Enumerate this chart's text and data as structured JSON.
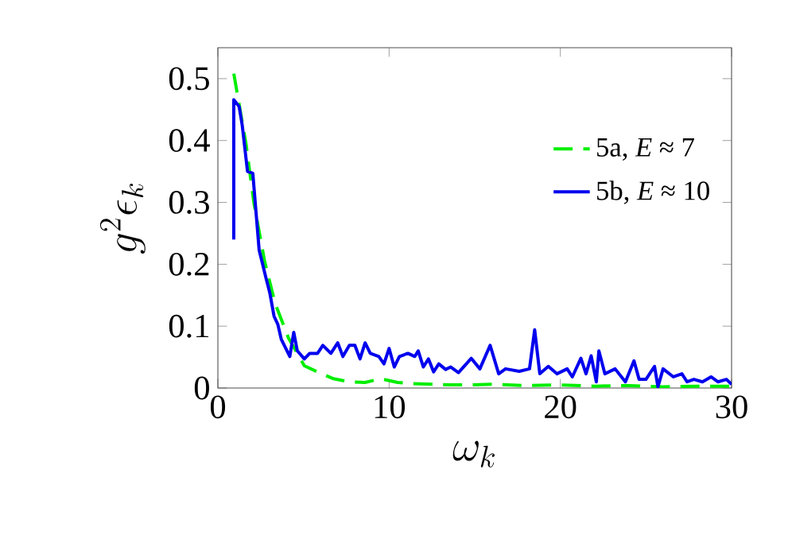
{
  "chart_data": {
    "type": "line",
    "xlabel": "\\omega_k",
    "ylabel": "g^2\\epsilon_k",
    "xlim": [
      0,
      30
    ],
    "ylim": [
      0,
      0.55
    ],
    "xticks": [
      0,
      10,
      20,
      30
    ],
    "yticks": [
      0,
      0.1,
      0.2,
      0.3,
      0.4,
      0.5
    ],
    "legend": "top right",
    "grid": false,
    "marker": "none",
    "series": [
      {
        "name": "5a, *E* ≈ 7",
        "color": "#00ee00",
        "line_style": "dashed",
        "x": [
          0.93,
          1.64,
          2.1,
          2.72,
          3.34,
          4.12,
          5.05,
          5.98,
          6.75,
          7.68,
          8.6,
          9.5,
          10.5,
          11.4,
          12.6,
          13.6,
          14.5,
          16,
          18,
          20,
          22,
          24,
          26,
          28,
          30
        ],
        "values": [
          0.508,
          0.395,
          0.3,
          0.206,
          0.137,
          0.081,
          0.036,
          0.024,
          0.015,
          0.01,
          0.009,
          0.015,
          0.009,
          0.007,
          0.006,
          0.005,
          0.005,
          0.006,
          0.004,
          0.005,
          0.003,
          0.004,
          0.002,
          0.003,
          0.003
        ]
      },
      {
        "name": "5b, *E* ≈ 10",
        "color": "#0000ee",
        "line_style": "solid",
        "x": [
          0.93,
          0.93,
          1.24,
          1.42,
          1.73,
          2.04,
          2.41,
          2.79,
          3.03,
          3.28,
          3.5,
          3.7,
          4.2,
          4.43,
          4.64,
          5.05,
          5.36,
          5.82,
          6.13,
          6.6,
          7.0,
          7.3,
          7.68,
          8.0,
          8.3,
          8.6,
          8.9,
          9.4,
          9.7,
          10,
          10.3,
          10.6,
          11.1,
          11.5,
          11.7,
          12,
          12.3,
          12.6,
          12.9,
          13.3,
          13.6,
          14.05,
          14.8,
          15.3,
          15.9,
          16.4,
          16.8,
          17.6,
          18.2,
          18.5,
          18.8,
          19.3,
          19.8,
          20.4,
          20.7,
          21.2,
          21.5,
          21.8,
          22.1,
          22.25,
          22.6,
          23.2,
          23.8,
          24.3,
          24.6,
          25,
          25.5,
          25.7,
          26,
          26.6,
          27.1,
          27.4,
          27.8,
          28.3,
          28.8,
          29.2,
          29.7,
          30
        ],
        "values": [
          0.24,
          0.466,
          0.455,
          0.425,
          0.35,
          0.347,
          0.223,
          0.18,
          0.154,
          0.116,
          0.103,
          0.079,
          0.051,
          0.09,
          0.06,
          0.047,
          0.056,
          0.056,
          0.069,
          0.056,
          0.073,
          0.051,
          0.069,
          0.069,
          0.047,
          0.073,
          0.056,
          0.051,
          0.039,
          0.064,
          0.034,
          0.051,
          0.056,
          0.051,
          0.06,
          0.034,
          0.047,
          0.026,
          0.039,
          0.03,
          0.034,
          0.025,
          0.048,
          0.031,
          0.069,
          0.023,
          0.031,
          0.027,
          0.031,
          0.094,
          0.023,
          0.035,
          0.023,
          0.031,
          0.018,
          0.048,
          0.023,
          0.052,
          0.01,
          0.06,
          0.023,
          0.031,
          0.01,
          0.044,
          0.014,
          0.014,
          0.035,
          0.002,
          0.031,
          0.018,
          0.023,
          0.01,
          0.014,
          0.01,
          0.018,
          0.01,
          0.014,
          0.006
        ]
      }
    ]
  }
}
